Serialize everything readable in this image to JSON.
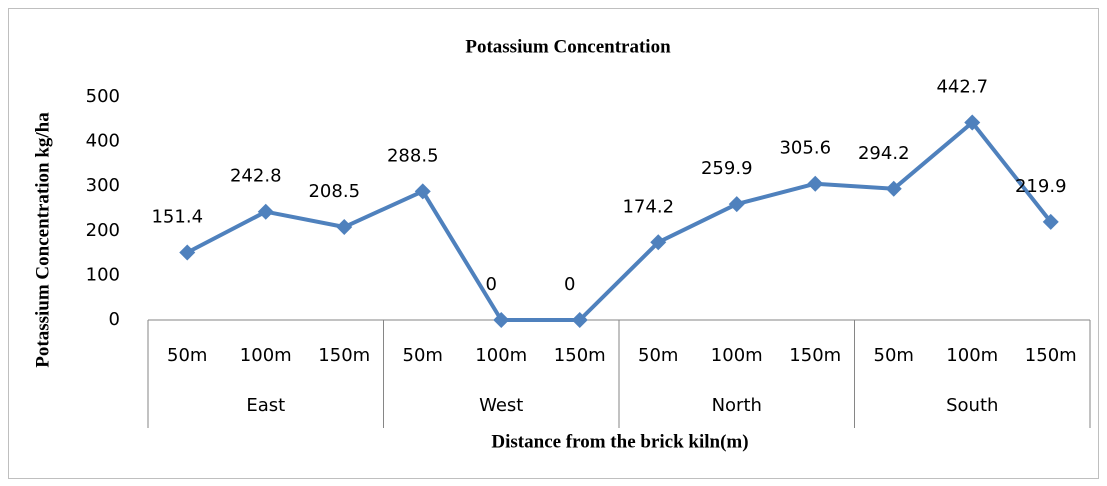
{
  "chart_data": {
    "type": "line",
    "title": "Potassium Concentration",
    "x_label": "Distance from the brick kiln(m)",
    "y_label": "Potassium Concentration kg/ha",
    "groups": [
      "East",
      "West",
      "North",
      "South"
    ],
    "categories": [
      "50m",
      "100m",
      "150m",
      "50m",
      "100m",
      "150m",
      "50m",
      "100m",
      "150m",
      "50m",
      "100m",
      "150m"
    ],
    "series": [
      {
        "name": "Potassium Concentration",
        "color": "#4f81bd",
        "values": [
          151.4,
          242.8,
          208.5,
          288.5,
          0,
          0,
          174.2,
          259.9,
          305.6,
          294.2,
          442.7,
          219.9
        ]
      }
    ],
    "ylim": [
      0,
      500
    ],
    "yticks": [
      0,
      100,
      200,
      300,
      400,
      500
    ],
    "grid": false,
    "legend": false
  }
}
